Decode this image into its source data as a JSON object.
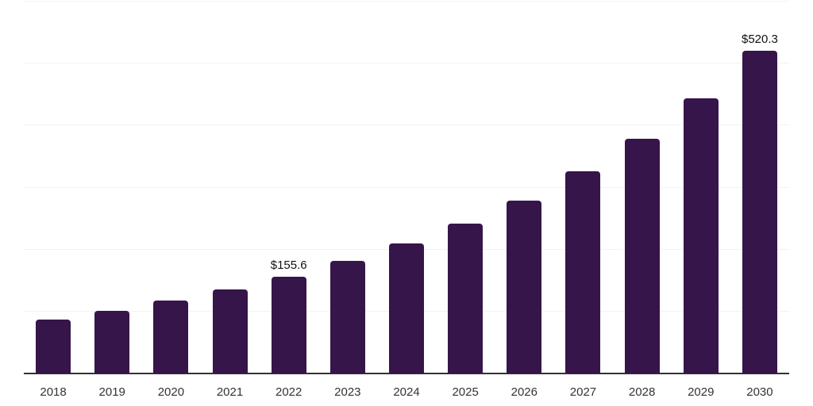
{
  "chart_data": {
    "type": "bar",
    "categories": [
      "2018",
      "2019",
      "2020",
      "2021",
      "2022",
      "2023",
      "2024",
      "2025",
      "2026",
      "2027",
      "2028",
      "2029",
      "2030"
    ],
    "values": [
      87.0,
      101.0,
      117.6,
      135.5,
      155.6,
      181.5,
      209.7,
      241.6,
      278.7,
      326.0,
      378.4,
      443.6,
      520.3
    ],
    "value_labels": [
      {
        "category": "2022",
        "index": 4,
        "text": "$155.6"
      },
      {
        "category": "2030",
        "index": 12,
        "text": "$520.3"
      }
    ],
    "title": "",
    "xlabel": "",
    "ylabel": "",
    "ylim": [
      0,
      600
    ],
    "gridline_values": [
      100,
      200,
      300,
      400,
      500,
      600
    ],
    "grid": "horizontal, unlabeled",
    "legend": "none",
    "colors": {
      "bar": "#36154a",
      "axis_line": "#333333",
      "gridline": "#f2f2f2",
      "tick_label": "#333333",
      "value_label": "#111111"
    }
  }
}
